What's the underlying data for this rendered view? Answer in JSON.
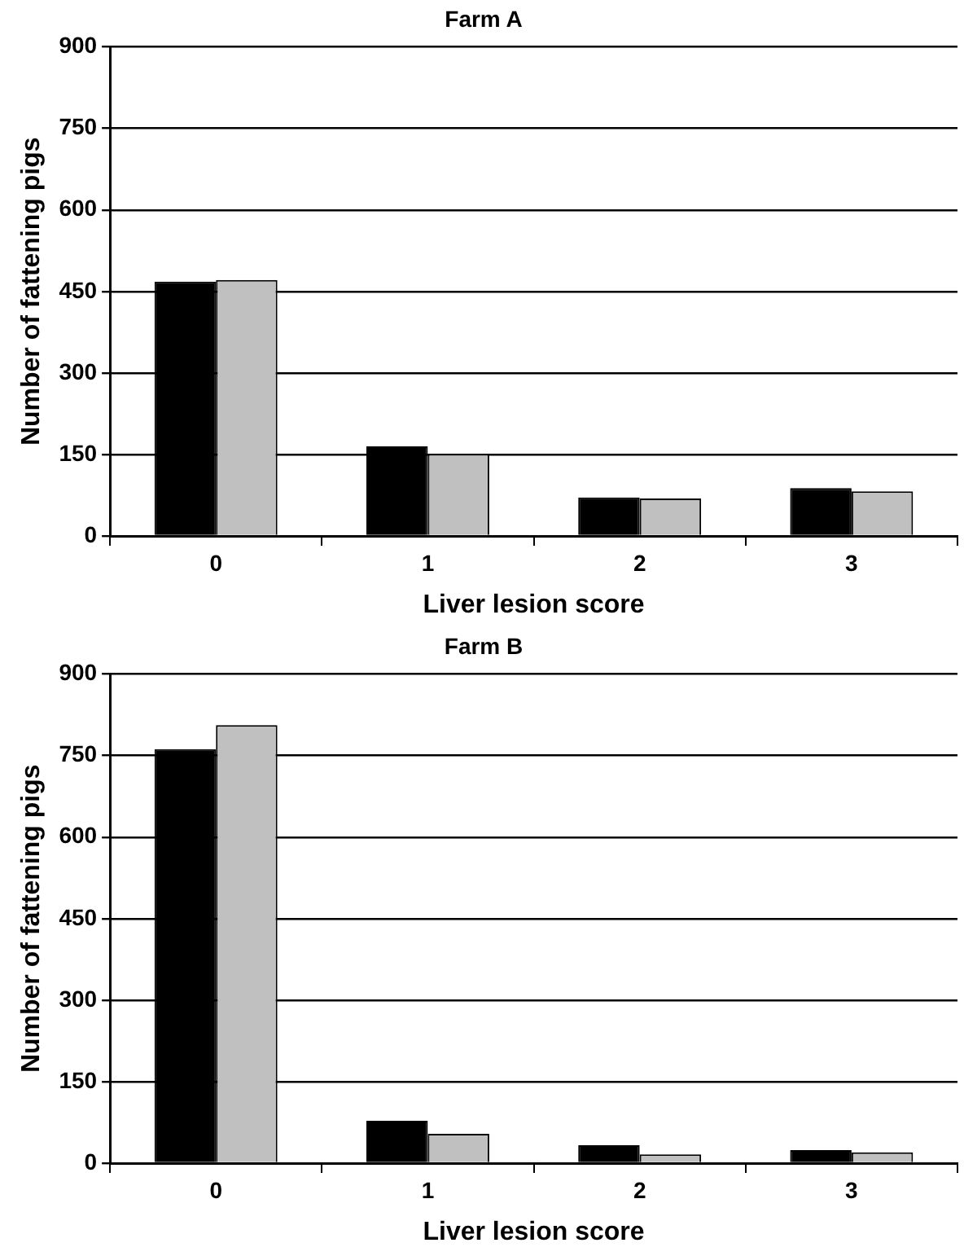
{
  "chart_data": [
    {
      "type": "bar",
      "title": "Farm A",
      "xlabel": "Liver lesion score",
      "ylabel": "Number of fattening pigs",
      "categories": [
        "0",
        "1",
        "2",
        "3"
      ],
      "series": [
        {
          "color": "#000000",
          "values": [
            468,
            165,
            71,
            88
          ]
        },
        {
          "color": "#c0c0c0",
          "values": [
            471,
            151,
            69,
            82
          ]
        }
      ],
      "ylim": [
        0,
        900
      ],
      "yticks": [
        0,
        150,
        300,
        450,
        600,
        750,
        900
      ],
      "grid": "y",
      "legend": false
    },
    {
      "type": "bar",
      "title": "Farm B",
      "xlabel": "Liver lesion score",
      "ylabel": "Number of fattening pigs",
      "categories": [
        "0",
        "1",
        "2",
        "3"
      ],
      "series": [
        {
          "color": "#000000",
          "values": [
            762,
            78,
            33,
            24
          ]
        },
        {
          "color": "#c0c0c0",
          "values": [
            806,
            54,
            16,
            20
          ]
        }
      ],
      "ylim": [
        0,
        900
      ],
      "yticks": [
        0,
        150,
        300,
        450,
        600,
        750,
        900
      ],
      "grid": "y",
      "legend": false
    }
  ]
}
